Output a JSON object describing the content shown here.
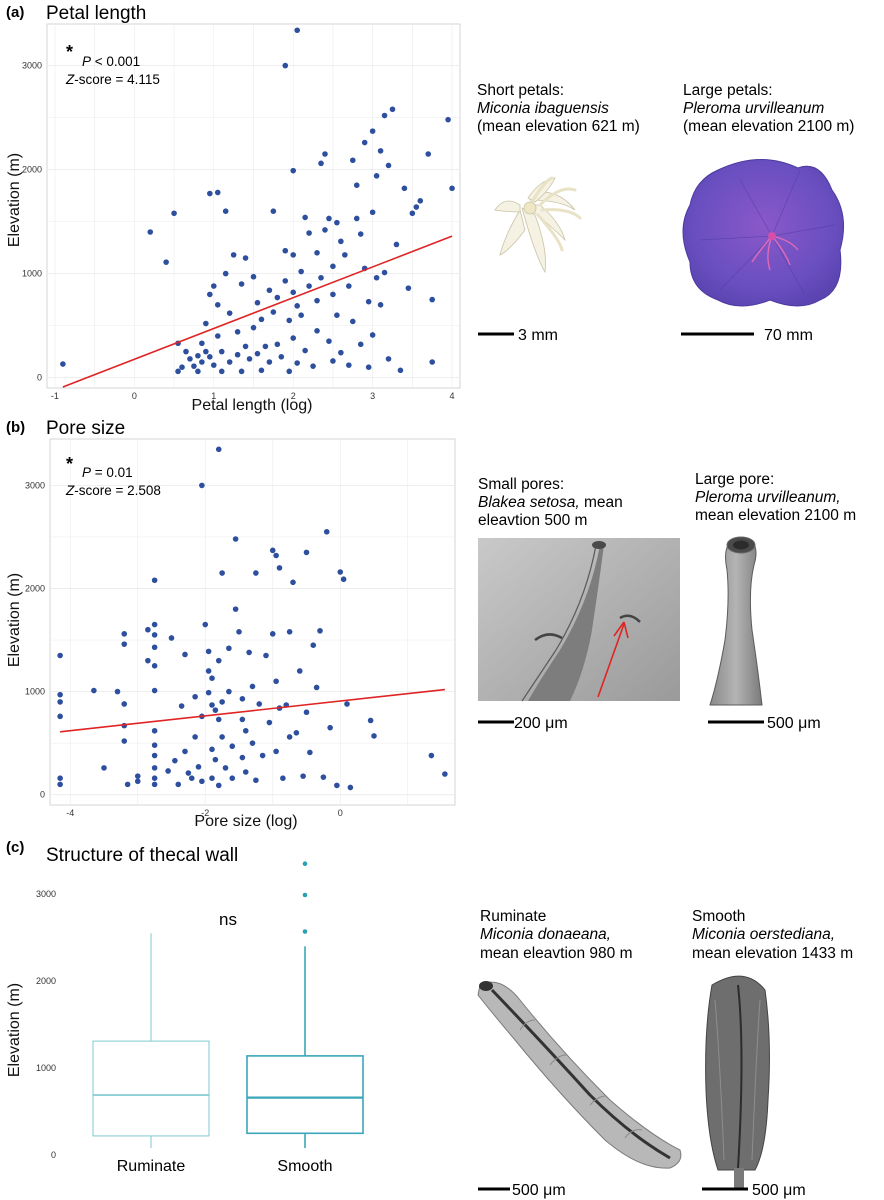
{
  "panels": {
    "a": {
      "letter": "(a)",
      "title": "Petal length"
    },
    "b": {
      "letter": "(b)",
      "title": "Pore size"
    },
    "c": {
      "letter": "(c)",
      "title": "Structure of thecal wall"
    }
  },
  "stats": {
    "a": {
      "star": "*",
      "p_label": "P",
      "p_value": " < 0.001",
      "z_label": "Z",
      "z_value": "-score = 4.115"
    },
    "b": {
      "star": "*",
      "p_label": "P",
      "p_value": " = 0.01",
      "z_label": "Z",
      "z_value": "-score = 2.508"
    },
    "c": {
      "ns": "ns"
    }
  },
  "captions": {
    "a_short": {
      "line1": "Short petals:",
      "species": "Miconia ibaguensis",
      "line3": "(mean elevation 621 m)"
    },
    "a_large": {
      "line1": "Large petals:",
      "species": "Pleroma urvilleanum",
      "line3": "(mean elevation 2100 m)"
    },
    "b_small": {
      "line1": "Small pores:",
      "species": "Blakea setosa,",
      "species_tail": " mean",
      "line3": "eleavtion 500 m"
    },
    "b_large": {
      "line1": "Large pore:",
      "species": "Pleroma urvilleanum,",
      "line3": "mean elevation 2100 m"
    },
    "c_rum": {
      "line1": "Ruminate",
      "species": "Miconia donaeana,",
      "line3": "mean eleavtion 980 m"
    },
    "c_smooth": {
      "line1": "Smooth",
      "species": "Miconia oerstediana,",
      "line3": "mean elevation 1433 m"
    }
  },
  "scale_bars": {
    "a_short": "3 mm",
    "a_large": "70 mm",
    "b_small": "200 μm",
    "b_large": "500 μm",
    "c_rum": "500 μm",
    "c_smooth": "500 μm"
  },
  "colors": {
    "points": "#2d4f9e",
    "fit_line": "#e02424",
    "box_ruminate": "#7fc9cf",
    "box_smooth": "#3aa6b9",
    "outlier": "#2aa0b5",
    "flower_purple": "#6a4fc0",
    "grid": "#ebebeb"
  },
  "chart_data": [
    {
      "type": "scatter",
      "title": "Petal length",
      "xlabel": "Petal length (log)",
      "ylabel": "Elevation (m)",
      "xlim": [
        -1.1,
        4.1
      ],
      "ylim": [
        -100,
        3400
      ],
      "xticks": [
        "-1",
        "0",
        "1",
        "2",
        "3",
        "4"
      ],
      "yticks": [
        "0",
        "1000",
        "2000",
        "3000"
      ],
      "fit_line": {
        "x": [
          -0.9,
          4.0
        ],
        "y": [
          -90,
          1360
        ]
      },
      "points": [
        [
          -0.9,
          130
        ],
        [
          0.2,
          1400
        ],
        [
          0.4,
          1110
        ],
        [
          0.5,
          1580
        ],
        [
          0.55,
          330
        ],
        [
          0.55,
          60
        ],
        [
          0.6,
          100
        ],
        [
          0.65,
          250
        ],
        [
          0.7,
          180
        ],
        [
          0.75,
          110
        ],
        [
          0.8,
          210
        ],
        [
          0.8,
          60
        ],
        [
          0.85,
          330
        ],
        [
          0.85,
          150
        ],
        [
          0.9,
          520
        ],
        [
          0.9,
          250
        ],
        [
          0.95,
          800
        ],
        [
          0.95,
          200
        ],
        [
          0.95,
          1770
        ],
        [
          1.0,
          880
        ],
        [
          1.0,
          120
        ],
        [
          1.05,
          1780
        ],
        [
          1.05,
          700
        ],
        [
          1.05,
          400
        ],
        [
          1.1,
          60
        ],
        [
          1.1,
          250
        ],
        [
          1.15,
          1600
        ],
        [
          1.15,
          1000
        ],
        [
          1.2,
          620
        ],
        [
          1.2,
          150
        ],
        [
          1.25,
          1180
        ],
        [
          1.3,
          440
        ],
        [
          1.3,
          220
        ],
        [
          1.35,
          900
        ],
        [
          1.35,
          60
        ],
        [
          1.4,
          1150
        ],
        [
          1.4,
          300
        ],
        [
          1.45,
          180
        ],
        [
          1.5,
          970
        ],
        [
          1.5,
          480
        ],
        [
          1.55,
          720
        ],
        [
          1.55,
          230
        ],
        [
          1.6,
          560
        ],
        [
          1.6,
          70
        ],
        [
          1.65,
          300
        ],
        [
          1.7,
          840
        ],
        [
          1.7,
          150
        ],
        [
          1.75,
          1600
        ],
        [
          1.75,
          630
        ],
        [
          1.8,
          770
        ],
        [
          1.8,
          320
        ],
        [
          1.85,
          200
        ],
        [
          1.9,
          3000
        ],
        [
          1.9,
          1220
        ],
        [
          1.9,
          930
        ],
        [
          1.95,
          550
        ],
        [
          1.95,
          60
        ],
        [
          2.0,
          1990
        ],
        [
          2.0,
          1180
        ],
        [
          2.0,
          820
        ],
        [
          2.0,
          380
        ],
        [
          2.05,
          3340
        ],
        [
          2.05,
          690
        ],
        [
          2.05,
          140
        ],
        [
          2.1,
          1020
        ],
        [
          2.1,
          600
        ],
        [
          2.15,
          1540
        ],
        [
          2.15,
          260
        ],
        [
          2.2,
          1390
        ],
        [
          2.2,
          880
        ],
        [
          2.25,
          110
        ],
        [
          2.3,
          1200
        ],
        [
          2.3,
          740
        ],
        [
          2.3,
          450
        ],
        [
          2.35,
          2060
        ],
        [
          2.35,
          960
        ],
        [
          2.4,
          2150
        ],
        [
          2.4,
          1420
        ],
        [
          2.45,
          1530
        ],
        [
          2.45,
          350
        ],
        [
          2.5,
          1070
        ],
        [
          2.5,
          800
        ],
        [
          2.5,
          160
        ],
        [
          2.55,
          1490
        ],
        [
          2.55,
          600
        ],
        [
          2.6,
          1310
        ],
        [
          2.6,
          240
        ],
        [
          2.65,
          1180
        ],
        [
          2.7,
          880
        ],
        [
          2.7,
          120
        ],
        [
          2.75,
          2090
        ],
        [
          2.75,
          540
        ],
        [
          2.8,
          1530
        ],
        [
          2.8,
          1850
        ],
        [
          2.85,
          1380
        ],
        [
          2.85,
          320
        ],
        [
          2.9,
          2260
        ],
        [
          2.9,
          1050
        ],
        [
          2.95,
          730
        ],
        [
          2.95,
          100
        ],
        [
          3.0,
          2370
        ],
        [
          3.0,
          1590
        ],
        [
          3.0,
          410
        ],
        [
          3.05,
          1940
        ],
        [
          3.05,
          960
        ],
        [
          3.1,
          2180
        ],
        [
          3.1,
          700
        ],
        [
          3.15,
          2520
        ],
        [
          3.15,
          1010
        ],
        [
          3.2,
          2040
        ],
        [
          3.2,
          180
        ],
        [
          3.25,
          2580
        ],
        [
          3.3,
          1280
        ],
        [
          3.35,
          70
        ],
        [
          3.4,
          1820
        ],
        [
          3.45,
          860
        ],
        [
          3.5,
          1580
        ],
        [
          3.55,
          1640
        ],
        [
          3.6,
          1700
        ],
        [
          3.7,
          2150
        ],
        [
          3.75,
          750
        ],
        [
          3.75,
          150
        ],
        [
          3.95,
          2480
        ],
        [
          4.0,
          1820
        ]
      ]
    },
    {
      "type": "scatter",
      "title": "Pore size",
      "xlabel": "Pore size (log)",
      "ylabel": "Elevation (m)",
      "xlim": [
        -4.3,
        1.7
      ],
      "ylim": [
        -100,
        3450
      ],
      "xticks": [
        "-4",
        "-2",
        "0"
      ],
      "yticks": [
        "0",
        "1000",
        "2000",
        "3000"
      ],
      "fit_line": {
        "x": [
          -4.15,
          1.55
        ],
        "y": [
          610,
          1020
        ]
      },
      "points": [
        [
          -4.15,
          1350
        ],
        [
          -4.15,
          970
        ],
        [
          -4.15,
          900
        ],
        [
          -4.15,
          760
        ],
        [
          -4.15,
          160
        ],
        [
          -4.15,
          100
        ],
        [
          -3.65,
          1010
        ],
        [
          -3.5,
          260
        ],
        [
          -3.3,
          1000
        ],
        [
          -3.2,
          1560
        ],
        [
          -3.2,
          1460
        ],
        [
          -3.2,
          880
        ],
        [
          -3.2,
          670
        ],
        [
          -3.2,
          520
        ],
        [
          -3.15,
          100
        ],
        [
          -3.0,
          180
        ],
        [
          -3.0,
          130
        ],
        [
          -2.85,
          1300
        ],
        [
          -2.85,
          1600
        ],
        [
          -2.75,
          2080
        ],
        [
          -2.75,
          1650
        ],
        [
          -2.75,
          1550
        ],
        [
          -2.75,
          1430
        ],
        [
          -2.75,
          1250
        ],
        [
          -2.75,
          1010
        ],
        [
          -2.75,
          620
        ],
        [
          -2.75,
          480
        ],
        [
          -2.75,
          380
        ],
        [
          -2.75,
          260
        ],
        [
          -2.75,
          160
        ],
        [
          -2.75,
          100
        ],
        [
          -2.55,
          230
        ],
        [
          -2.5,
          1520
        ],
        [
          -2.45,
          330
        ],
        [
          -2.4,
          100
        ],
        [
          -2.35,
          860
        ],
        [
          -2.3,
          1360
        ],
        [
          -2.3,
          420
        ],
        [
          -2.25,
          210
        ],
        [
          -2.2,
          160
        ],
        [
          -2.15,
          950
        ],
        [
          -2.15,
          560
        ],
        [
          -2.1,
          270
        ],
        [
          -2.05,
          3000
        ],
        [
          -2.05,
          760
        ],
        [
          -2.05,
          130
        ],
        [
          -2.0,
          1650
        ],
        [
          -1.95,
          1390
        ],
        [
          -1.95,
          1200
        ],
        [
          -1.95,
          990
        ],
        [
          -1.9,
          1130
        ],
        [
          -1.9,
          870
        ],
        [
          -1.9,
          440
        ],
        [
          -1.9,
          160
        ],
        [
          -1.85,
          820
        ],
        [
          -1.85,
          340
        ],
        [
          -1.8,
          3350
        ],
        [
          -1.8,
          1300
        ],
        [
          -1.8,
          730
        ],
        [
          -1.8,
          90
        ],
        [
          -1.75,
          2150
        ],
        [
          -1.75,
          900
        ],
        [
          -1.75,
          560
        ],
        [
          -1.7,
          260
        ],
        [
          -1.65,
          1000
        ],
        [
          -1.65,
          1420
        ],
        [
          -1.6,
          470
        ],
        [
          -1.6,
          160
        ],
        [
          -1.55,
          1800
        ],
        [
          -1.55,
          2480
        ],
        [
          -1.5,
          1580
        ],
        [
          -1.45,
          930
        ],
        [
          -1.45,
          730
        ],
        [
          -1.45,
          360
        ],
        [
          -1.4,
          620
        ],
        [
          -1.4,
          220
        ],
        [
          -1.35,
          1380
        ],
        [
          -1.3,
          1050
        ],
        [
          -1.3,
          500
        ],
        [
          -1.25,
          2150
        ],
        [
          -1.25,
          140
        ],
        [
          -1.2,
          880
        ],
        [
          -1.15,
          380
        ],
        [
          -1.1,
          1350
        ],
        [
          -1.05,
          700
        ],
        [
          -1.0,
          2370
        ],
        [
          -1.0,
          1560
        ],
        [
          -0.95,
          2320
        ],
        [
          -0.95,
          1100
        ],
        [
          -0.95,
          420
        ],
        [
          -0.9,
          2200
        ],
        [
          -0.9,
          840
        ],
        [
          -0.85,
          160
        ],
        [
          -0.8,
          870
        ],
        [
          -0.75,
          560
        ],
        [
          -0.75,
          1580
        ],
        [
          -0.7,
          2060
        ],
        [
          -0.65,
          600
        ],
        [
          -0.6,
          1200
        ],
        [
          -0.55,
          180
        ],
        [
          -0.5,
          2350
        ],
        [
          -0.5,
          800
        ],
        [
          -0.45,
          410
        ],
        [
          -0.4,
          1450
        ],
        [
          -0.35,
          1040
        ],
        [
          -0.3,
          1590
        ],
        [
          -0.25,
          170
        ],
        [
          -0.2,
          2550
        ],
        [
          -0.15,
          650
        ],
        [
          -0.05,
          90
        ],
        [
          0.0,
          2160
        ],
        [
          0.05,
          2090
        ],
        [
          0.1,
          880
        ],
        [
          0.15,
          70
        ],
        [
          0.45,
          720
        ],
        [
          0.5,
          570
        ],
        [
          1.35,
          380
        ],
        [
          1.55,
          200
        ]
      ]
    },
    {
      "type": "box",
      "title": "Structure of thecal wall",
      "ylabel": "Elevation (m)",
      "ylim": [
        -80,
        3450
      ],
      "yticks": [
        "0",
        "1000",
        "2000",
        "3000"
      ],
      "categories": [
        "Ruminate",
        "Smooth"
      ],
      "boxes": [
        {
          "category": "Ruminate",
          "min": 80,
          "q1": 220,
          "median": 690,
          "q3": 1310,
          "max": 2550,
          "outliers": []
        },
        {
          "category": "Smooth",
          "min": 80,
          "q1": 250,
          "median": 660,
          "q3": 1140,
          "max": 2400,
          "outliers": [
            2570,
            2990,
            3350
          ]
        }
      ]
    }
  ]
}
